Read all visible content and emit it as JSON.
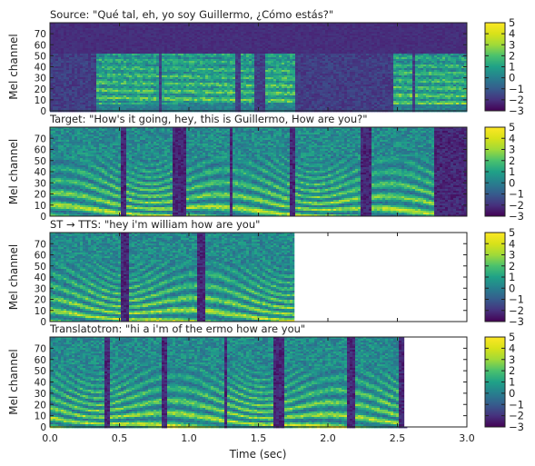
{
  "chart_data": {
    "type": "heatmap",
    "xlabel": "Time (sec)",
    "x_ticks": [
      "0.0",
      "0.5",
      "1.0",
      "1.5",
      "2.0",
      "2.5",
      "3.0"
    ],
    "xlim": [
      0,
      3.0
    ],
    "ylim": [
      0,
      80
    ],
    "y_ticks": [
      "0",
      "10",
      "20",
      "30",
      "40",
      "50",
      "60",
      "70"
    ],
    "colorbar_ticks": [
      "5",
      "4",
      "3",
      "2",
      "1",
      "0",
      "−1",
      "−2",
      "−3"
    ],
    "colorbar_range": [
      -3,
      5
    ],
    "colormap": "viridis",
    "panels": [
      {
        "title": "Source: \"Qué tal, eh, yo soy Guillermo, ¿Cómo estás?\"",
        "ylabel": "Mel channel",
        "end_time": 3.0,
        "speech_segments": [
          [
            0.33,
            0.46
          ],
          [
            0.47,
            0.78
          ],
          [
            0.79,
            1.32
          ],
          [
            1.36,
            1.47
          ],
          [
            1.53,
            1.75
          ],
          [
            2.46,
            2.6
          ],
          [
            2.62,
            3.0
          ]
        ]
      },
      {
        "title": "Target: \"How's it going, hey, this is Guillermo, How are you?\"",
        "ylabel": "Mel channel",
        "end_time": 3.0,
        "speech_segments": [
          [
            0.0,
            0.5
          ],
          [
            0.54,
            0.88
          ],
          [
            0.98,
            1.28
          ],
          [
            1.3,
            1.72
          ],
          [
            1.76,
            2.22
          ],
          [
            2.3,
            2.75
          ]
        ]
      },
      {
        "title": "ST → TTS: \"hey i'm william how are you\"",
        "ylabel": "Mel channel",
        "end_time": 1.76,
        "speech_segments": [
          [
            0.0,
            0.5
          ],
          [
            0.55,
            1.05
          ],
          [
            1.1,
            1.76
          ]
        ]
      },
      {
        "title": "Translatotron: \"hi a i'm of the ermo how are you\"",
        "ylabel": "Mel channel",
        "end_time": 2.55,
        "speech_segments": [
          [
            0.0,
            0.38
          ],
          [
            0.42,
            0.8
          ],
          [
            0.84,
            1.24
          ],
          [
            1.27,
            1.6
          ],
          [
            1.68,
            2.12
          ],
          [
            2.18,
            2.5
          ]
        ]
      }
    ]
  }
}
